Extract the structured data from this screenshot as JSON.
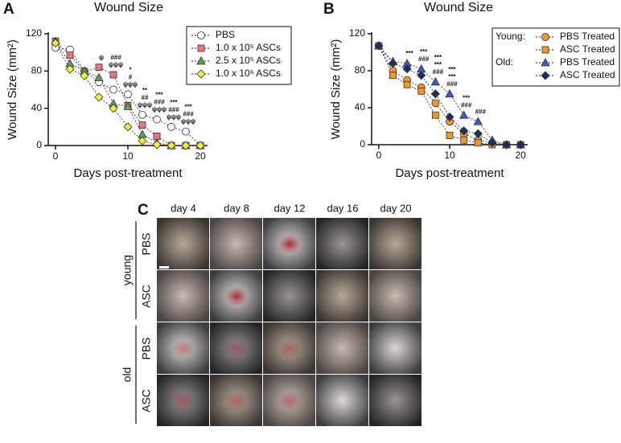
{
  "chart_data": [
    {
      "type": "line",
      "panel": "A",
      "title": "Wound Size",
      "x_label": "Days post-treatment",
      "y_label": "Wound Size (mm²)",
      "x": [
        0,
        2,
        4,
        6,
        8,
        10,
        12,
        14,
        16,
        18,
        20
      ],
      "xlim": [
        -1,
        21
      ],
      "xticks": [
        0,
        10,
        20
      ],
      "ylim": [
        0,
        120
      ],
      "yticks": [
        0,
        40,
        80,
        120
      ],
      "series": [
        {
          "name": "PBS",
          "color": "#ffffff",
          "marker": "circle",
          "values": [
            105,
            103,
            80,
            68,
            60,
            55,
            33,
            28,
            20,
            15,
            0
          ]
        },
        {
          "name": "1.0 x 10⁵ ASCs",
          "color": "#e8767a",
          "marker": "square",
          "values": [
            112,
            97,
            79,
            84,
            76,
            43,
            22,
            10,
            0,
            0,
            0
          ]
        },
        {
          "name": "2.5 x 10⁵ ASCs",
          "color": "#5aa05a",
          "marker": "triangle",
          "values": [
            112,
            88,
            80,
            73,
            45,
            42,
            12,
            3,
            0,
            0,
            0
          ]
        },
        {
          "name": "1.0 x 10⁶ ASCs",
          "color": "#f5f03c",
          "marker": "diamond",
          "values": [
            110,
            82,
            75,
            52,
            40,
            20,
            5,
            1,
            0,
            0,
            0
          ]
        }
      ],
      "annotations": [
        {
          "x": 6,
          "lines": [
            "ψ"
          ]
        },
        {
          "x": 8,
          "lines": [
            "###",
            "ψψψ"
          ]
        },
        {
          "x": 10,
          "lines": [
            "*",
            "#",
            "ψψψ"
          ]
        },
        {
          "x": 12,
          "lines": [
            "**",
            "##",
            "ψψψ"
          ]
        },
        {
          "x": 14,
          "lines": [
            "***",
            "###",
            "ψψψ"
          ]
        },
        {
          "x": 16,
          "lines": [
            "***",
            "###",
            "ψψψ"
          ]
        },
        {
          "x": 18,
          "lines": [
            "***",
            "###",
            "ψψψ"
          ]
        }
      ]
    },
    {
      "type": "line",
      "panel": "B",
      "title": "Wound Size",
      "x_label": "Days post-treatment",
      "y_label": "Wound Size (mm²)",
      "x": [
        0,
        2,
        4,
        6,
        8,
        10,
        12,
        14,
        16,
        18,
        20
      ],
      "xlim": [
        -1,
        21
      ],
      "xticks": [
        0,
        10,
        20
      ],
      "ylim": [
        0,
        120
      ],
      "yticks": [
        0,
        40,
        80,
        120
      ],
      "series": [
        {
          "group": "Young:",
          "name": "PBS Treated",
          "color": "#f0962e",
          "marker": "circle",
          "values": [
            107,
            80,
            70,
            62,
            45,
            25,
            12,
            5,
            2,
            0,
            0
          ]
        },
        {
          "name": "ASC Treated",
          "color": "#f0962e",
          "marker": "square",
          "values": [
            107,
            75,
            65,
            58,
            32,
            10,
            5,
            2,
            0,
            0,
            0
          ]
        },
        {
          "group": "Old:",
          "name": "PBS Treated",
          "color": "#3d5bc4",
          "marker": "triangle",
          "values": [
            107,
            90,
            88,
            82,
            68,
            55,
            32,
            25,
            5,
            0,
            0
          ]
        },
        {
          "name": "ASC Treated",
          "color": "#1e2f5e",
          "marker": "diamond",
          "values": [
            107,
            88,
            82,
            75,
            55,
            30,
            15,
            12,
            2,
            0,
            0
          ]
        }
      ],
      "annotations": [
        {
          "x": 4,
          "lines": [
            "***"
          ]
        },
        {
          "x": 6,
          "lines": [
            "***",
            "###"
          ]
        },
        {
          "x": 8,
          "lines": [
            "***",
            "***",
            "###"
          ]
        },
        {
          "x": 10,
          "lines": [
            "***",
            "***",
            "###"
          ]
        },
        {
          "x": 12,
          "lines": [
            "***",
            "###"
          ]
        },
        {
          "x": 14,
          "lines": [
            "###"
          ]
        }
      ]
    }
  ],
  "photo_panel": {
    "panel": "C",
    "days": [
      "day 4",
      "day 8",
      "day 12",
      "day 16",
      "day 20"
    ],
    "groups": [
      {
        "label": "young",
        "rows": [
          "PBS",
          "ASC"
        ]
      },
      {
        "label": "old",
        "rows": [
          "PBS",
          "ASC"
        ]
      }
    ]
  }
}
